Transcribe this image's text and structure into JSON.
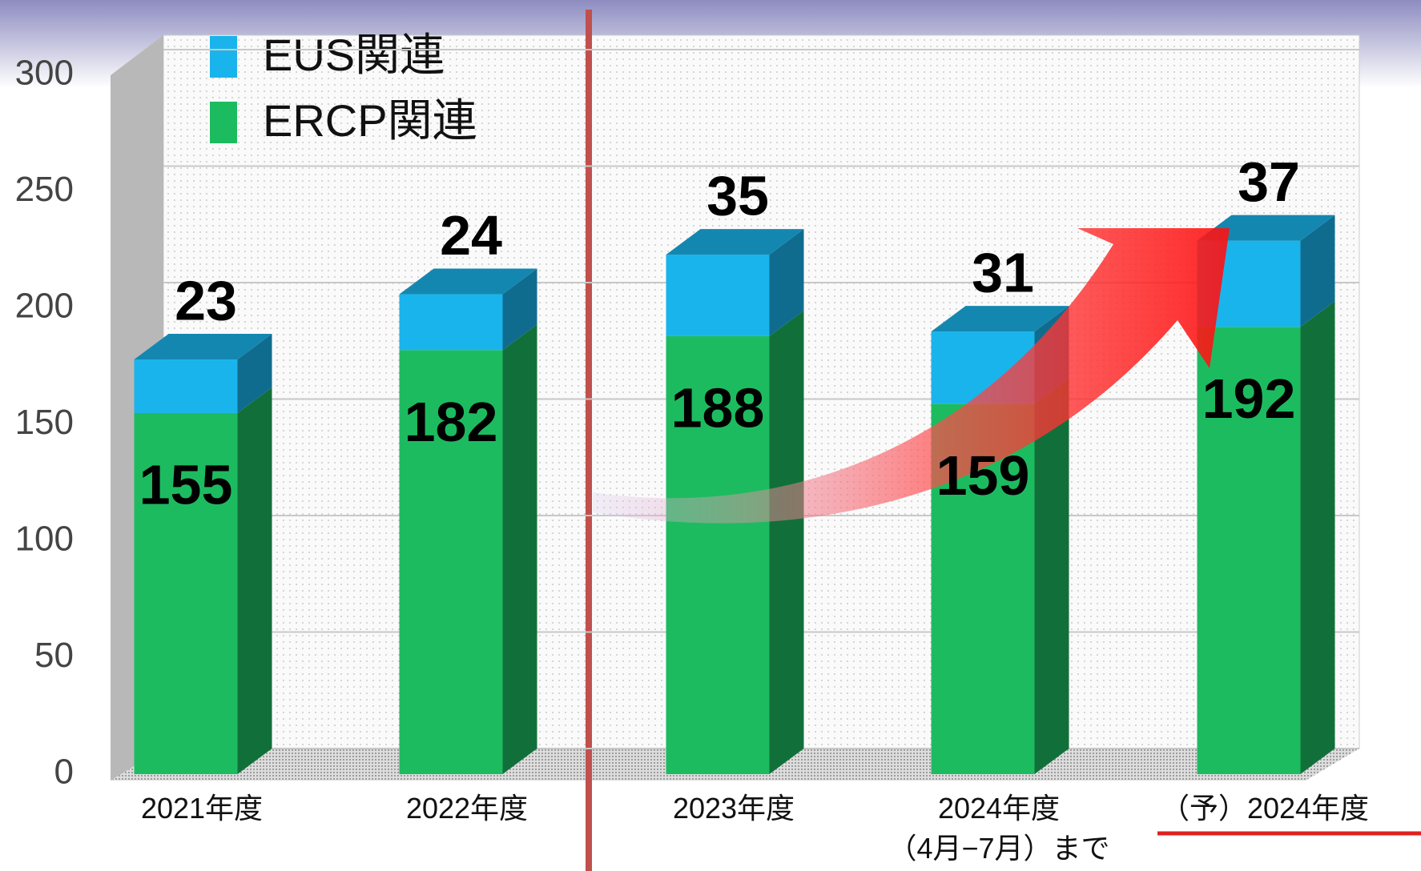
{
  "chart_data": {
    "type": "bar3d_stacked",
    "categories": [
      "2021年度",
      "2022年度",
      "2023年度",
      "2024年度\n（4月−7月）まで",
      "（予）2024年度"
    ],
    "series": [
      {
        "name": "ERCP関連",
        "color": "#1dbb60",
        "values": [
          155,
          182,
          188,
          159,
          192
        ]
      },
      {
        "name": "EUS関連",
        "color": "#1ab4ec",
        "values": [
          23,
          24,
          35,
          31,
          37
        ]
      }
    ],
    "ylim": [
      0,
      300
    ],
    "yticks": [
      0,
      50,
      100,
      150,
      200,
      250,
      300
    ],
    "grid": true,
    "legend": "top-left"
  }
}
